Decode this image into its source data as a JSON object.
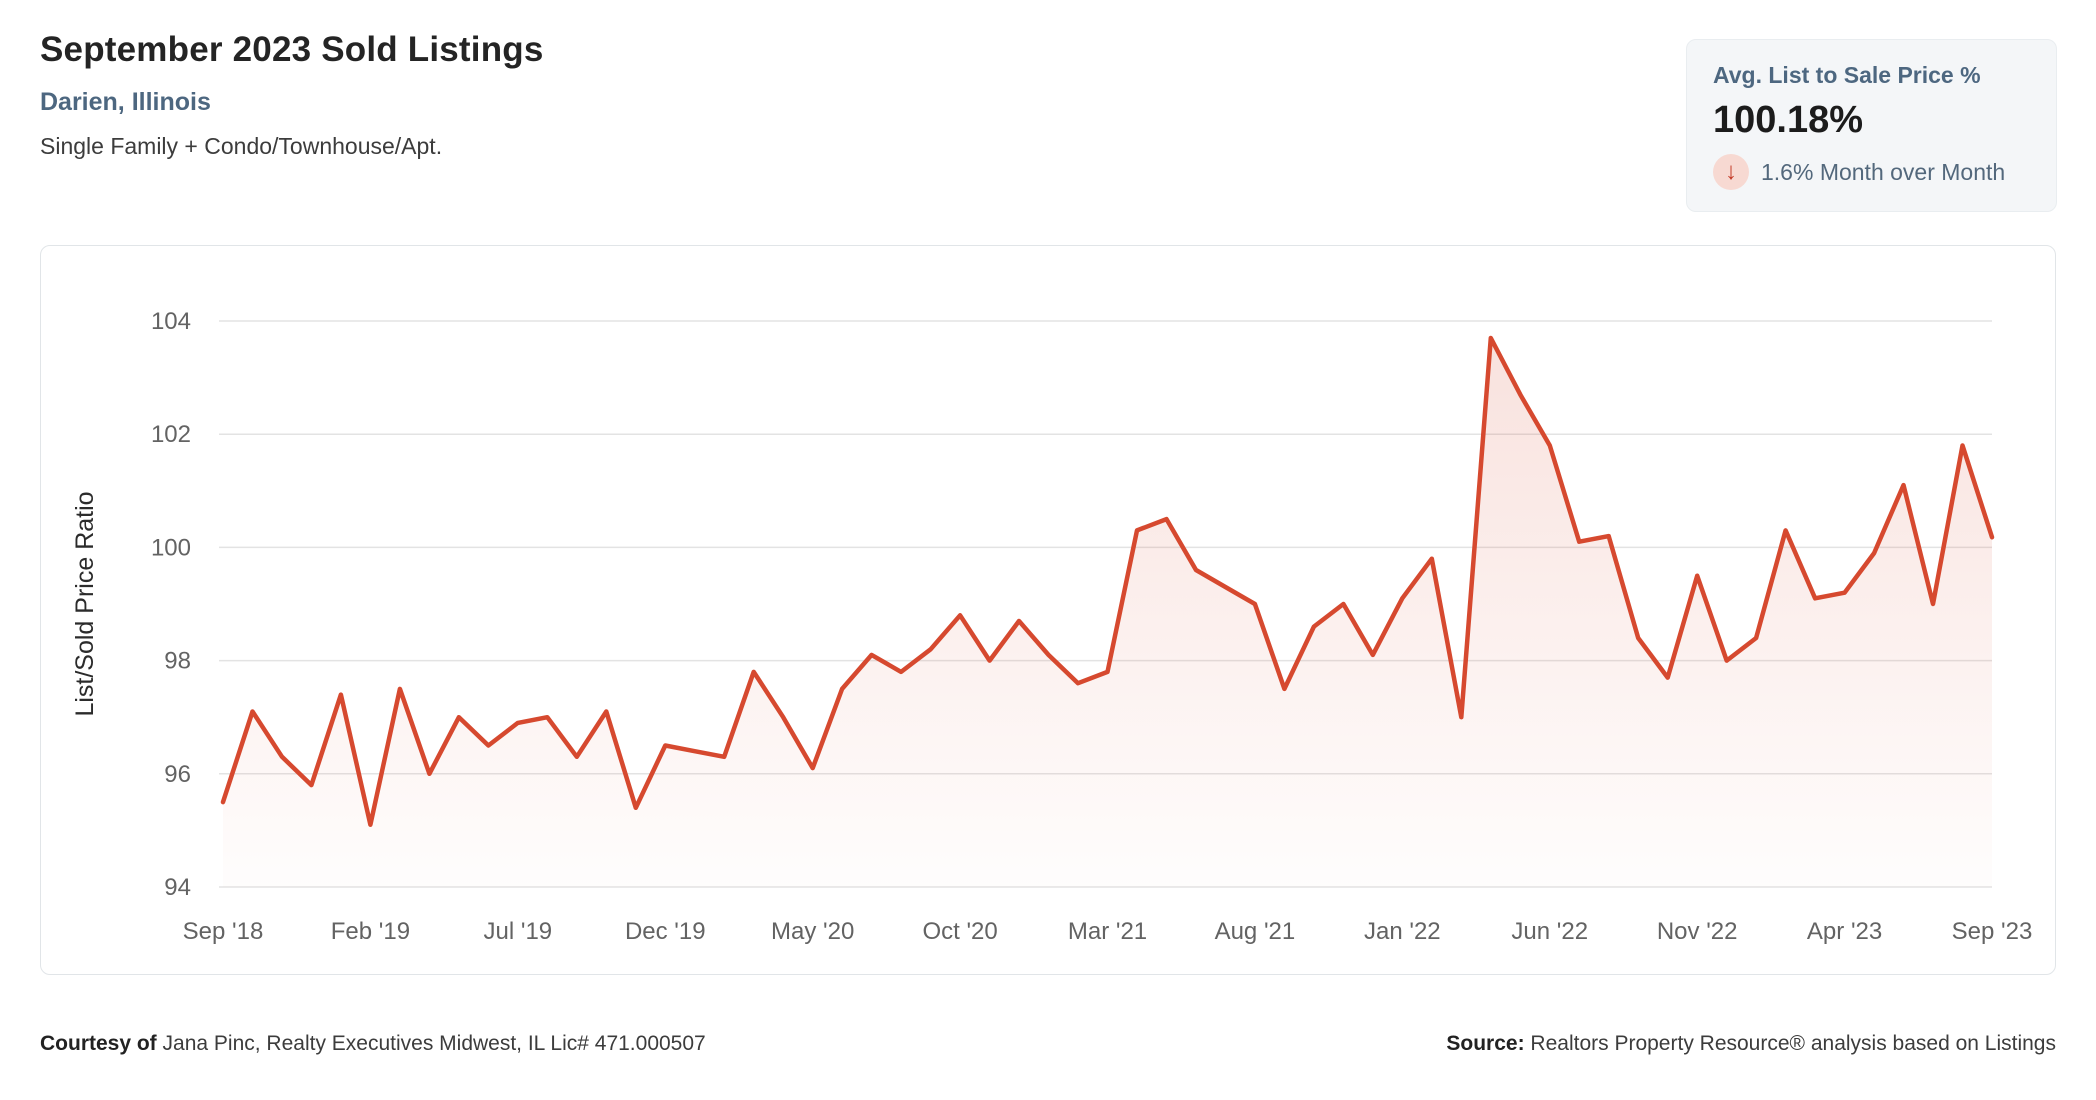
{
  "header": {
    "title": "September 2023 Sold Listings",
    "location": "Darien, Illinois",
    "property_types": "Single Family + Condo/Townhouse/Apt."
  },
  "stat_card": {
    "label": "Avg. List to Sale Price %",
    "value": "100.18%",
    "mom_change": "1.6% Month over Month",
    "mom_direction": "down",
    "arrow_icon": "↓",
    "accent_color": "#c43d2a"
  },
  "footer": {
    "courtesy_label": "Courtesy of",
    "courtesy_text": "Jana Pinc, Realty Executives Midwest, IL Lic# 471.000507",
    "source_label": "Source:",
    "source_text": "Realtors Property Resource® analysis based on Listings"
  },
  "chart_data": {
    "type": "line",
    "title": "September 2023 Sold Listings",
    "ylabel": "List/Sold Price Ratio",
    "xlabel": "",
    "ylim": [
      94,
      104
    ],
    "yticks": [
      94,
      96,
      98,
      100,
      102,
      104
    ],
    "xtick_every": 5,
    "grid": "horizontal-only",
    "legend": "none",
    "line_color": "#d6492f",
    "fill_top_color": "rgba(214,73,47,0.16)",
    "fill_bottom_color": "rgba(214,73,47,0.01)",
    "grid_color": "#e3e3e3",
    "tick_label_color": "#636363",
    "x": [
      "Sep '18",
      "Oct '18",
      "Nov '18",
      "Dec '18",
      "Jan '19",
      "Feb '19",
      "Mar '19",
      "Apr '19",
      "May '19",
      "Jun '19",
      "Jul '19",
      "Aug '19",
      "Sep '19",
      "Oct '19",
      "Nov '19",
      "Dec '19",
      "Jan '20",
      "Feb '20",
      "Mar '20",
      "Apr '20",
      "May '20",
      "Jun '20",
      "Jul '20",
      "Aug '20",
      "Sep '20",
      "Oct '20",
      "Nov '20",
      "Dec '20",
      "Jan '21",
      "Feb '21",
      "Mar '21",
      "Apr '21",
      "May '21",
      "Jun '21",
      "Jul '21",
      "Aug '21",
      "Sep '21",
      "Oct '21",
      "Nov '21",
      "Dec '21",
      "Jan '22",
      "Feb '22",
      "Mar '22",
      "Apr '22",
      "May '22",
      "Jun '22",
      "Jul '22",
      "Aug '22",
      "Sep '22",
      "Oct '22",
      "Nov '22",
      "Dec '22",
      "Jan '23",
      "Feb '23",
      "Mar '23",
      "Apr '23",
      "May '23",
      "Jun '23",
      "Jul '23",
      "Aug '23",
      "Sep '23"
    ],
    "values": [
      95.5,
      97.1,
      96.3,
      95.8,
      97.4,
      95.1,
      97.5,
      96.0,
      97.0,
      96.5,
      96.9,
      97.0,
      96.3,
      97.1,
      95.4,
      96.5,
      96.4,
      96.3,
      97.8,
      97.0,
      96.1,
      97.5,
      98.1,
      97.8,
      98.2,
      98.8,
      98.0,
      98.7,
      98.1,
      97.6,
      97.8,
      100.3,
      100.5,
      99.6,
      99.3,
      99.0,
      97.5,
      98.6,
      99.0,
      98.1,
      99.1,
      99.8,
      97.0,
      103.7,
      102.7,
      101.8,
      100.1,
      100.2,
      98.4,
      97.7,
      99.5,
      98.0,
      98.4,
      100.3,
      99.1,
      99.2,
      99.9,
      101.1,
      99.0,
      101.8,
      100.18
    ]
  }
}
